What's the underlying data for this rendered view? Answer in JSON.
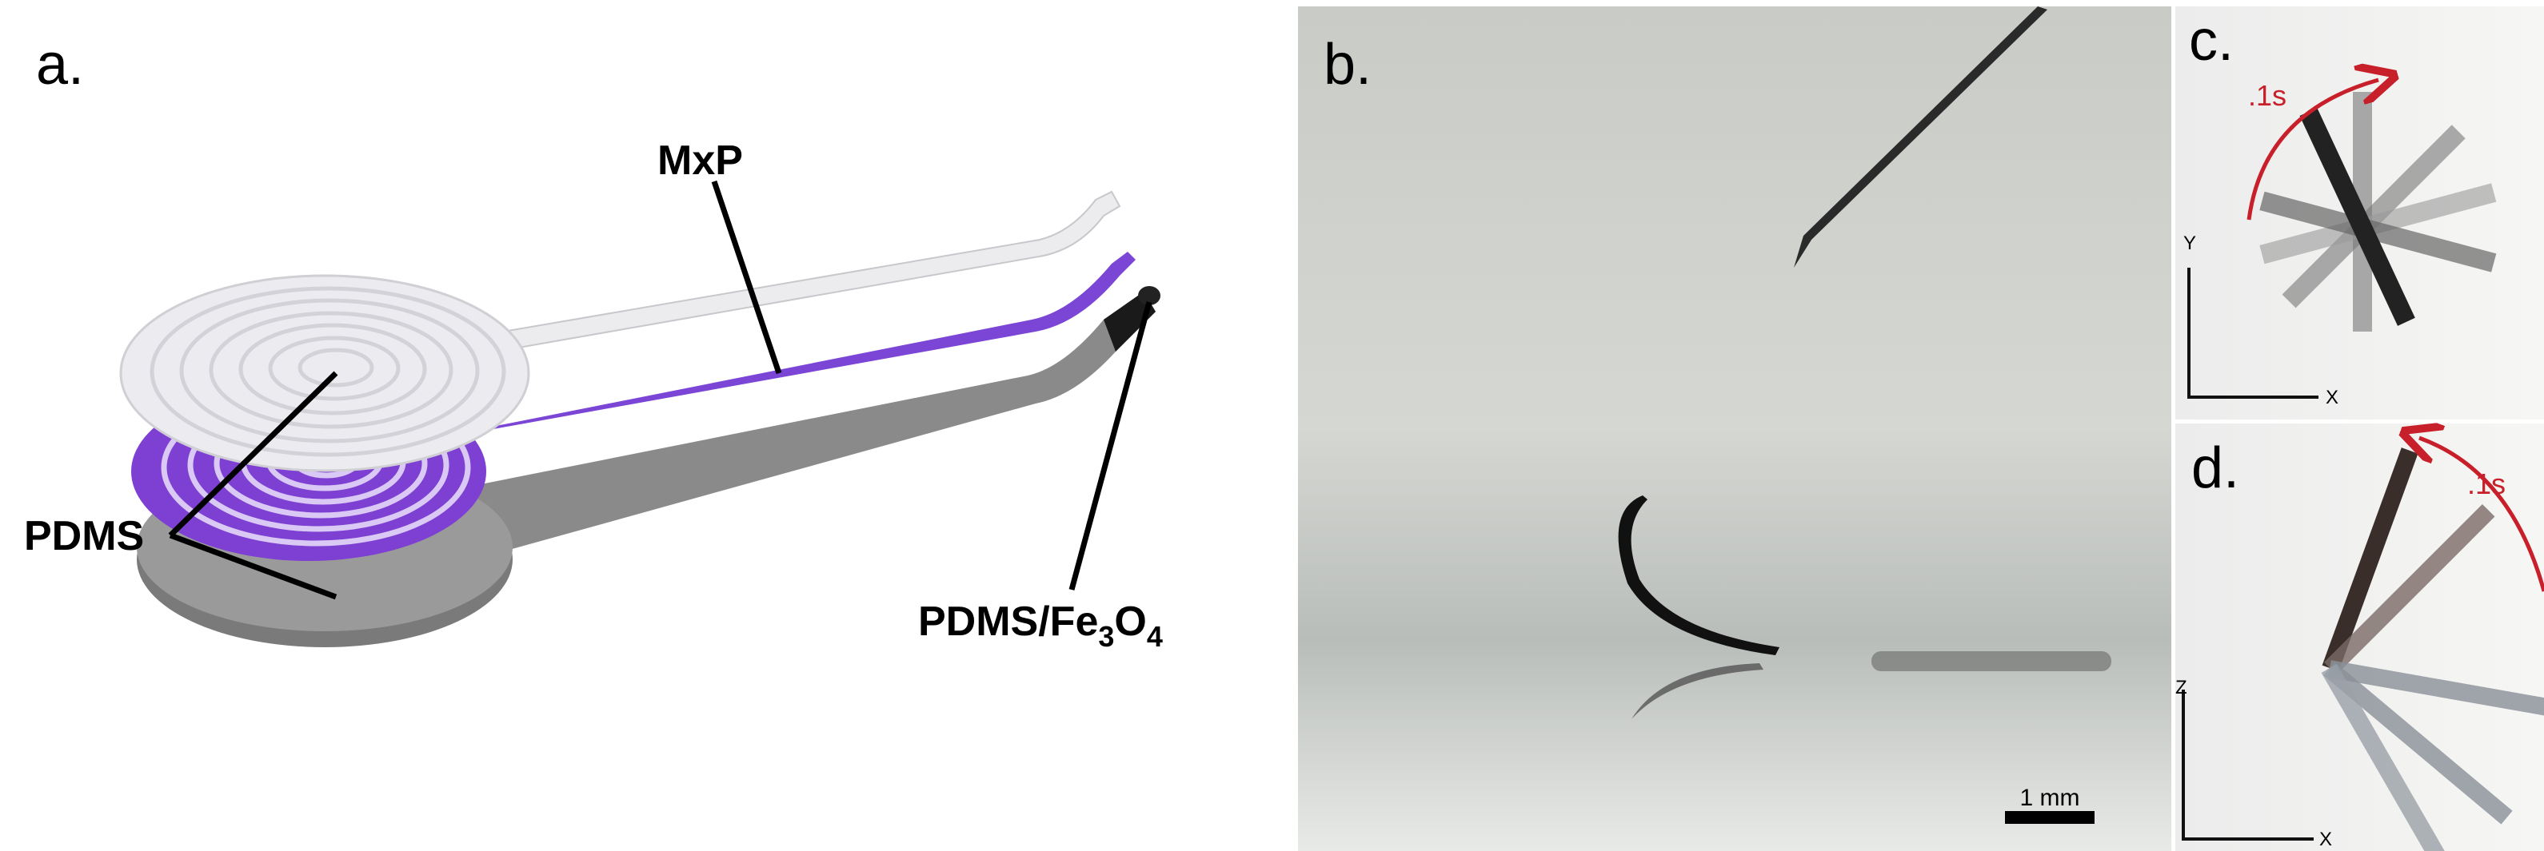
{
  "panel_a": {
    "label": "a.",
    "mxp": "MxP",
    "pdms": "PDMS",
    "pdms_fe3o4": [
      "PDMS/Fe",
      "3",
      "O",
      "4"
    ]
  },
  "panel_b": {
    "label": "b.",
    "scale_bar": "1 mm"
  },
  "panel_c": {
    "label": "c.",
    "time": ".1s",
    "axis_y": "Y",
    "axis_x": "X"
  },
  "panel_d": {
    "label": "d.",
    "time": ".1s",
    "axis_z": "Z",
    "axis_x": "X"
  }
}
